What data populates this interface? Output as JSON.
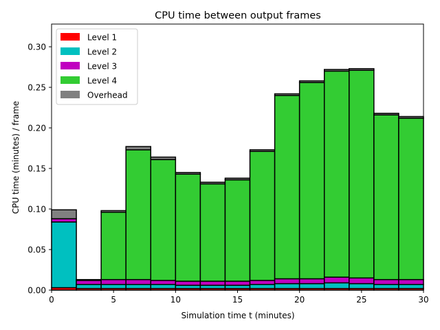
{
  "chart_data": {
    "type": "bar",
    "stacked": true,
    "title": "CPU time between output frames",
    "xlabel": "Simulation time t (minutes)",
    "ylabel": "CPU time (minutes) / frame",
    "xlim": [
      0,
      30
    ],
    "ylim": [
      0,
      0.328
    ],
    "xticks": [
      0,
      5,
      10,
      15,
      20,
      25,
      30
    ],
    "xtick_labels": [
      "0",
      "5",
      "10",
      "15",
      "20",
      "25",
      "30"
    ],
    "yticks": [
      0.0,
      0.05,
      0.1,
      0.15,
      0.2,
      0.25,
      0.3
    ],
    "ytick_labels": [
      "0.00",
      "0.05",
      "0.10",
      "0.15",
      "0.20",
      "0.25",
      "0.30"
    ],
    "grid": false,
    "legend_position": "top-left",
    "bin_width": 2,
    "x": [
      0,
      2,
      4,
      6,
      8,
      10,
      12,
      14,
      16,
      18,
      20,
      22,
      24,
      26,
      28
    ],
    "series": [
      {
        "name": "Level 1",
        "color": "#ff0000",
        "values": [
          0.003,
          0.002,
          0.002,
          0.002,
          0.002,
          0.002,
          0.002,
          0.002,
          0.002,
          0.002,
          0.002,
          0.002,
          0.002,
          0.002,
          0.002
        ]
      },
      {
        "name": "Level 2",
        "color": "#00c0c0",
        "values": [
          0.081,
          0.005,
          0.005,
          0.005,
          0.005,
          0.004,
          0.004,
          0.004,
          0.005,
          0.006,
          0.006,
          0.007,
          0.006,
          0.005,
          0.005
        ]
      },
      {
        "name": "Level 3",
        "color": "#c000c0",
        "values": [
          0.004,
          0.005,
          0.006,
          0.006,
          0.005,
          0.005,
          0.005,
          0.005,
          0.005,
          0.006,
          0.006,
          0.007,
          0.007,
          0.006,
          0.006
        ]
      },
      {
        "name": "Level 4",
        "color": "#33cc33",
        "values": [
          0.0,
          0.0,
          0.083,
          0.16,
          0.149,
          0.132,
          0.12,
          0.125,
          0.159,
          0.226,
          0.242,
          0.254,
          0.256,
          0.203,
          0.199
        ]
      },
      {
        "name": "Overhead",
        "color": "#808080",
        "values": [
          0.011,
          0.001,
          0.002,
          0.004,
          0.003,
          0.002,
          0.002,
          0.002,
          0.002,
          0.002,
          0.002,
          0.002,
          0.002,
          0.002,
          0.002
        ]
      }
    ]
  }
}
